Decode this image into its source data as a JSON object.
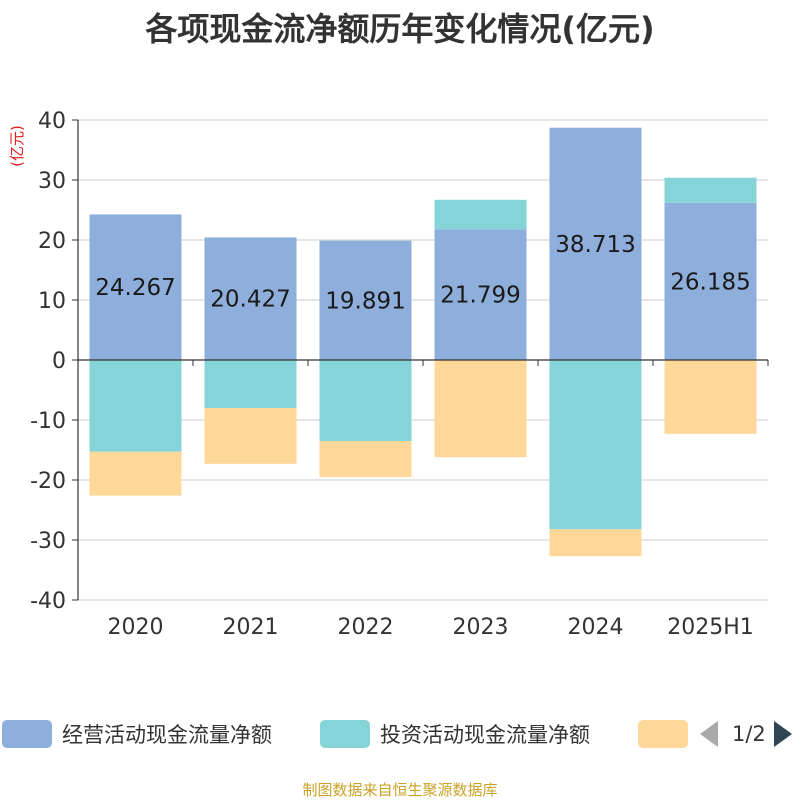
{
  "chart_data": {
    "type": "bar",
    "stacked": true,
    "title": "各项现金流净额历年变化情况(亿元)",
    "ylabel": "(亿元)",
    "categories": [
      "2020",
      "2021",
      "2022",
      "2023",
      "2024",
      "2025H1"
    ],
    "ylim": [
      -40,
      40
    ],
    "yticks": [
      40,
      30,
      20,
      10,
      0,
      -10,
      -20,
      -30,
      -40
    ],
    "grid": true,
    "legend_position": "bottom",
    "series": [
      {
        "name": "经营活动现金流量净额",
        "color": "#8eaedb",
        "values": [
          24.267,
          20.427,
          19.891,
          21.799,
          38.713,
          26.185
        ],
        "labels": [
          "24.267",
          "20.427",
          "19.891",
          "21.799",
          "38.713",
          "26.185"
        ]
      },
      {
        "name": "投资活动现金流量净额",
        "color": "#85d5d8",
        "values": [
          -15.3,
          -8.0,
          -13.5,
          4.9,
          -28.2,
          4.2
        ]
      },
      {
        "name": "",
        "color": "#fdd898",
        "values": [
          -7.3,
          -9.3,
          -6.0,
          -16.2,
          -4.5,
          -12.3
        ]
      }
    ]
  },
  "legend": {
    "page": "1/2"
  },
  "source": "制图数据来自恒生聚源数据库"
}
